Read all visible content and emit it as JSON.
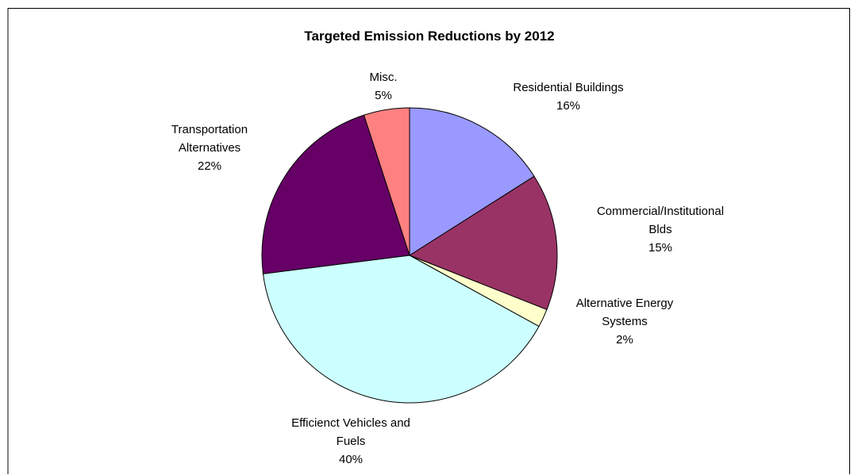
{
  "chart_data": {
    "type": "pie",
    "title": "Targeted Emission Reductions by 2012",
    "start_angle": "12 o'clock",
    "direction": "clockwise",
    "legend": "none",
    "slices": [
      {
        "label_lines": [
          "Residential Buildings"
        ],
        "percent_text": "16%",
        "value": 16,
        "color": "#9999FF"
      },
      {
        "label_lines": [
          "Commercial/Institutional",
          "Blds"
        ],
        "percent_text": "15%",
        "value": 15,
        "color": "#993366"
      },
      {
        "label_lines": [
          "Alternative Energy",
          "Systems"
        ],
        "percent_text": "2%",
        "value": 2,
        "color": "#FFFFCC"
      },
      {
        "label_lines": [
          "Efficienct Vehicles and",
          "Fuels"
        ],
        "percent_text": "40%",
        "value": 40,
        "color": "#CCFFFF"
      },
      {
        "label_lines": [
          "Transportation",
          "Alternatives"
        ],
        "percent_text": "22%",
        "value": 22,
        "color": "#660066"
      },
      {
        "label_lines": [
          "Misc."
        ],
        "percent_text": "5%",
        "value": 5,
        "color": "#FF8080"
      }
    ]
  }
}
